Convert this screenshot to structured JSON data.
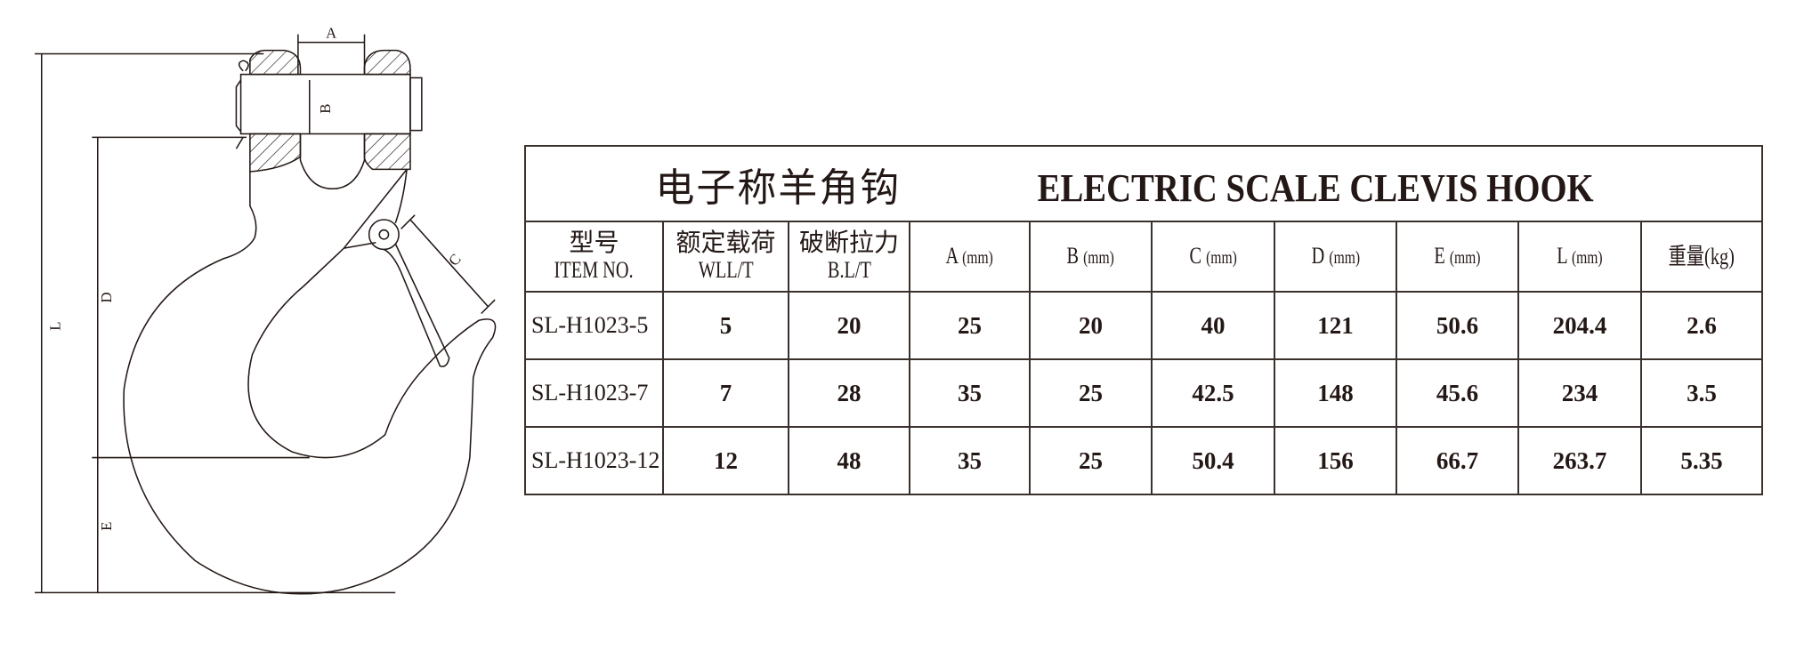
{
  "drawing": {
    "dimension_labels": {
      "A": "A",
      "B": "B",
      "C": "C",
      "D": "D",
      "E": "E",
      "L": "L"
    }
  },
  "table": {
    "title_cn": "电子称羊角钩",
    "title_en": "ELECTRIC SCALE CLEVIS HOOK",
    "headers": [
      {
        "cn": "型号",
        "en": "ITEM NO."
      },
      {
        "cn": "额定载荷",
        "en": "WLL/T"
      },
      {
        "cn": "破断拉力",
        "en": "B.L/T"
      },
      {
        "label": "A",
        "unit": "(mm)"
      },
      {
        "label": "B",
        "unit": "(mm)"
      },
      {
        "label": "C",
        "unit": "(mm)"
      },
      {
        "label": "D",
        "unit": "(mm)"
      },
      {
        "label": "E",
        "unit": "(mm)"
      },
      {
        "label": "L",
        "unit": "(mm)"
      },
      {
        "label": "重量",
        "unit": "(kg)"
      }
    ],
    "rows": [
      [
        "SL-H1023-5",
        "5",
        "20",
        "25",
        "20",
        "40",
        "121",
        "50.6",
        "204.4",
        "2.6"
      ],
      [
        "SL-H1023-7",
        "7",
        "28",
        "35",
        "25",
        "42.5",
        "148",
        "45.6",
        "234",
        "3.5"
      ],
      [
        "SL-H1023-12",
        "12",
        "48",
        "35",
        "25",
        "50.4",
        "156",
        "66.7",
        "263.7",
        "5.35"
      ]
    ]
  }
}
